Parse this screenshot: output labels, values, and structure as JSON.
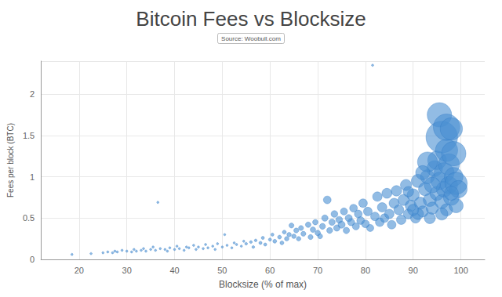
{
  "chart_data": {
    "type": "scatter",
    "title": "Bitcoin Fees vs Blocksize",
    "subtitle": "Source: Woobull.com",
    "x_label": "Blocksize (% of max)",
    "y_label": "Fees per block (BTC)",
    "color": "#4a90d2",
    "marker": "circle",
    "grid": true,
    "xlim": [
      12,
      105
    ],
    "ylim": [
      0,
      2.4
    ],
    "xticks": [
      20,
      30,
      40,
      50,
      60,
      70,
      80,
      90,
      100
    ],
    "yticks": [
      0,
      0.5,
      1,
      1.5,
      2
    ],
    "x": [
      18.5,
      22.5,
      25,
      26,
      27,
      27.5,
      28,
      29,
      30,
      31,
      31.5,
      32,
      33,
      33.5,
      34,
      35,
      35.5,
      36,
      36.5,
      37,
      38,
      38.5,
      39,
      40,
      40.5,
      41,
      42,
      42.5,
      43,
      44,
      44.5,
      45,
      46,
      46.5,
      47,
      48,
      48.5,
      49,
      50,
      50.5,
      51,
      52,
      52.5,
      53,
      54,
      54.5,
      55,
      56,
      56.5,
      57,
      58,
      58.5,
      59,
      60,
      60.5,
      61,
      62,
      62.5,
      63,
      63.5,
      64,
      64.5,
      65,
      65.5,
      66,
      66.5,
      67,
      68,
      68.5,
      69,
      69.5,
      70,
      70.5,
      71,
      71.5,
      72,
      72.5,
      73,
      73.5,
      74,
      74.5,
      75,
      75.5,
      76,
      76.5,
      77,
      77.5,
      78,
      78.5,
      79,
      79.5,
      80,
      80.5,
      81,
      81.5,
      82,
      82.5,
      83,
      83.5,
      84,
      84.5,
      85,
      85.5,
      86,
      86.5,
      87,
      87.5,
      88,
      88.5,
      89,
      89.5,
      90,
      90.5,
      91,
      91.5,
      92,
      92.5,
      93,
      93.5,
      94,
      94.5,
      95,
      95,
      95.5,
      95.5,
      96,
      96,
      96.5,
      96.5,
      97,
      97,
      97,
      97.5,
      97.5,
      98,
      98,
      98.5,
      98.5,
      99,
      99,
      99.5,
      93,
      94,
      92,
      98,
      96,
      91,
      90,
      89,
      93.5
    ],
    "values": [
      0.06,
      0.07,
      0.08,
      0.09,
      0.08,
      0.1,
      0.09,
      0.11,
      0.1,
      0.09,
      0.12,
      0.1,
      0.11,
      0.13,
      0.1,
      0.12,
      0.15,
      0.11,
      0.69,
      0.13,
      0.12,
      0.1,
      0.14,
      0.12,
      0.16,
      0.13,
      0.11,
      0.15,
      0.14,
      0.17,
      0.12,
      0.15,
      0.13,
      0.18,
      0.14,
      0.16,
      0.12,
      0.19,
      0.15,
      0.3,
      0.17,
      0.14,
      0.2,
      0.18,
      0.16,
      0.22,
      0.19,
      0.21,
      0.15,
      0.23,
      0.2,
      0.26,
      0.18,
      0.24,
      0.3,
      0.22,
      0.27,
      0.2,
      0.33,
      0.25,
      0.3,
      0.41,
      0.28,
      0.35,
      0.25,
      0.38,
      0.31,
      0.42,
      0.27,
      0.36,
      0.45,
      0.32,
      0.28,
      0.4,
      0.5,
      0.72,
      0.35,
      0.45,
      0.55,
      0.38,
      0.48,
      0.42,
      0.58,
      0.35,
      0.5,
      0.45,
      0.62,
      0.4,
      0.55,
      0.47,
      0.68,
      0.43,
      0.58,
      0.38,
      2.35,
      0.52,
      0.76,
      0.45,
      0.63,
      0.5,
      0.8,
      0.55,
      0.42,
      0.68,
      0.83,
      0.6,
      0.48,
      0.72,
      0.9,
      0.55,
      0.65,
      0.78,
      0.5,
      0.95,
      0.68,
      0.58,
      0.85,
      1.0,
      0.72,
      0.62,
      1.1,
      0.8,
      1.2,
      0.95,
      1.75,
      0.7,
      1.48,
      1.05,
      0.85,
      1.32,
      1.6,
      0.6,
      1.15,
      0.9,
      1.58,
      0.75,
      1.28,
      1.0,
      0.92,
      0.65,
      0.85,
      1.18,
      0.9,
      1.05,
      0.8,
      0.55,
      0.55,
      0.6,
      0.82,
      0.5
    ],
    "sizes": [
      0.1,
      0.1,
      0.1,
      0.1,
      0.1,
      0.1,
      0.1,
      0.1,
      0.1,
      0.1,
      0.1,
      0.1,
      0.1,
      0.1,
      0.1,
      0.1,
      0.1,
      0.1,
      0.1,
      0.1,
      0.1,
      0.1,
      0.1,
      0.1,
      0.1,
      0.1,
      0.1,
      0.1,
      0.1,
      0.1,
      0.1,
      0.1,
      0.1,
      0.1,
      0.1,
      0.1,
      0.1,
      0.1,
      0.1,
      0.1,
      0.1,
      0.1,
      0.1,
      0.1,
      0.1,
      0.1,
      0.15,
      0.15,
      0.15,
      0.15,
      0.2,
      0.2,
      0.2,
      0.2,
      0.2,
      0.3,
      0.3,
      0.3,
      0.3,
      0.4,
      0.4,
      0.5,
      0.4,
      0.5,
      0.4,
      0.5,
      0.5,
      0.6,
      0.5,
      0.6,
      0.6,
      0.6,
      0.5,
      0.7,
      0.8,
      1.2,
      0.7,
      0.8,
      0.9,
      0.8,
      0.9,
      1,
      1,
      0.8,
      1,
      1,
      1.2,
      1,
      1.2,
      1.2,
      1.5,
      1.2,
      1.5,
      1,
      0.1,
      1.5,
      1.8,
      1.5,
      1.8,
      1.5,
      2,
      1.8,
      1.5,
      2,
      2.2,
      2,
      1.8,
      2.5,
      2.5,
      2,
      2.5,
      3,
      2,
      3.5,
      3,
      2.5,
      3.5,
      4,
      3.5,
      3,
      5,
      4,
      7,
      6,
      12,
      4,
      20,
      8,
      5,
      10,
      14,
      3,
      9,
      6,
      10,
      5,
      12,
      7,
      10,
      4,
      6,
      8,
      5,
      4,
      4,
      3,
      2.5,
      2.5,
      2.2,
      2.5
    ]
  }
}
